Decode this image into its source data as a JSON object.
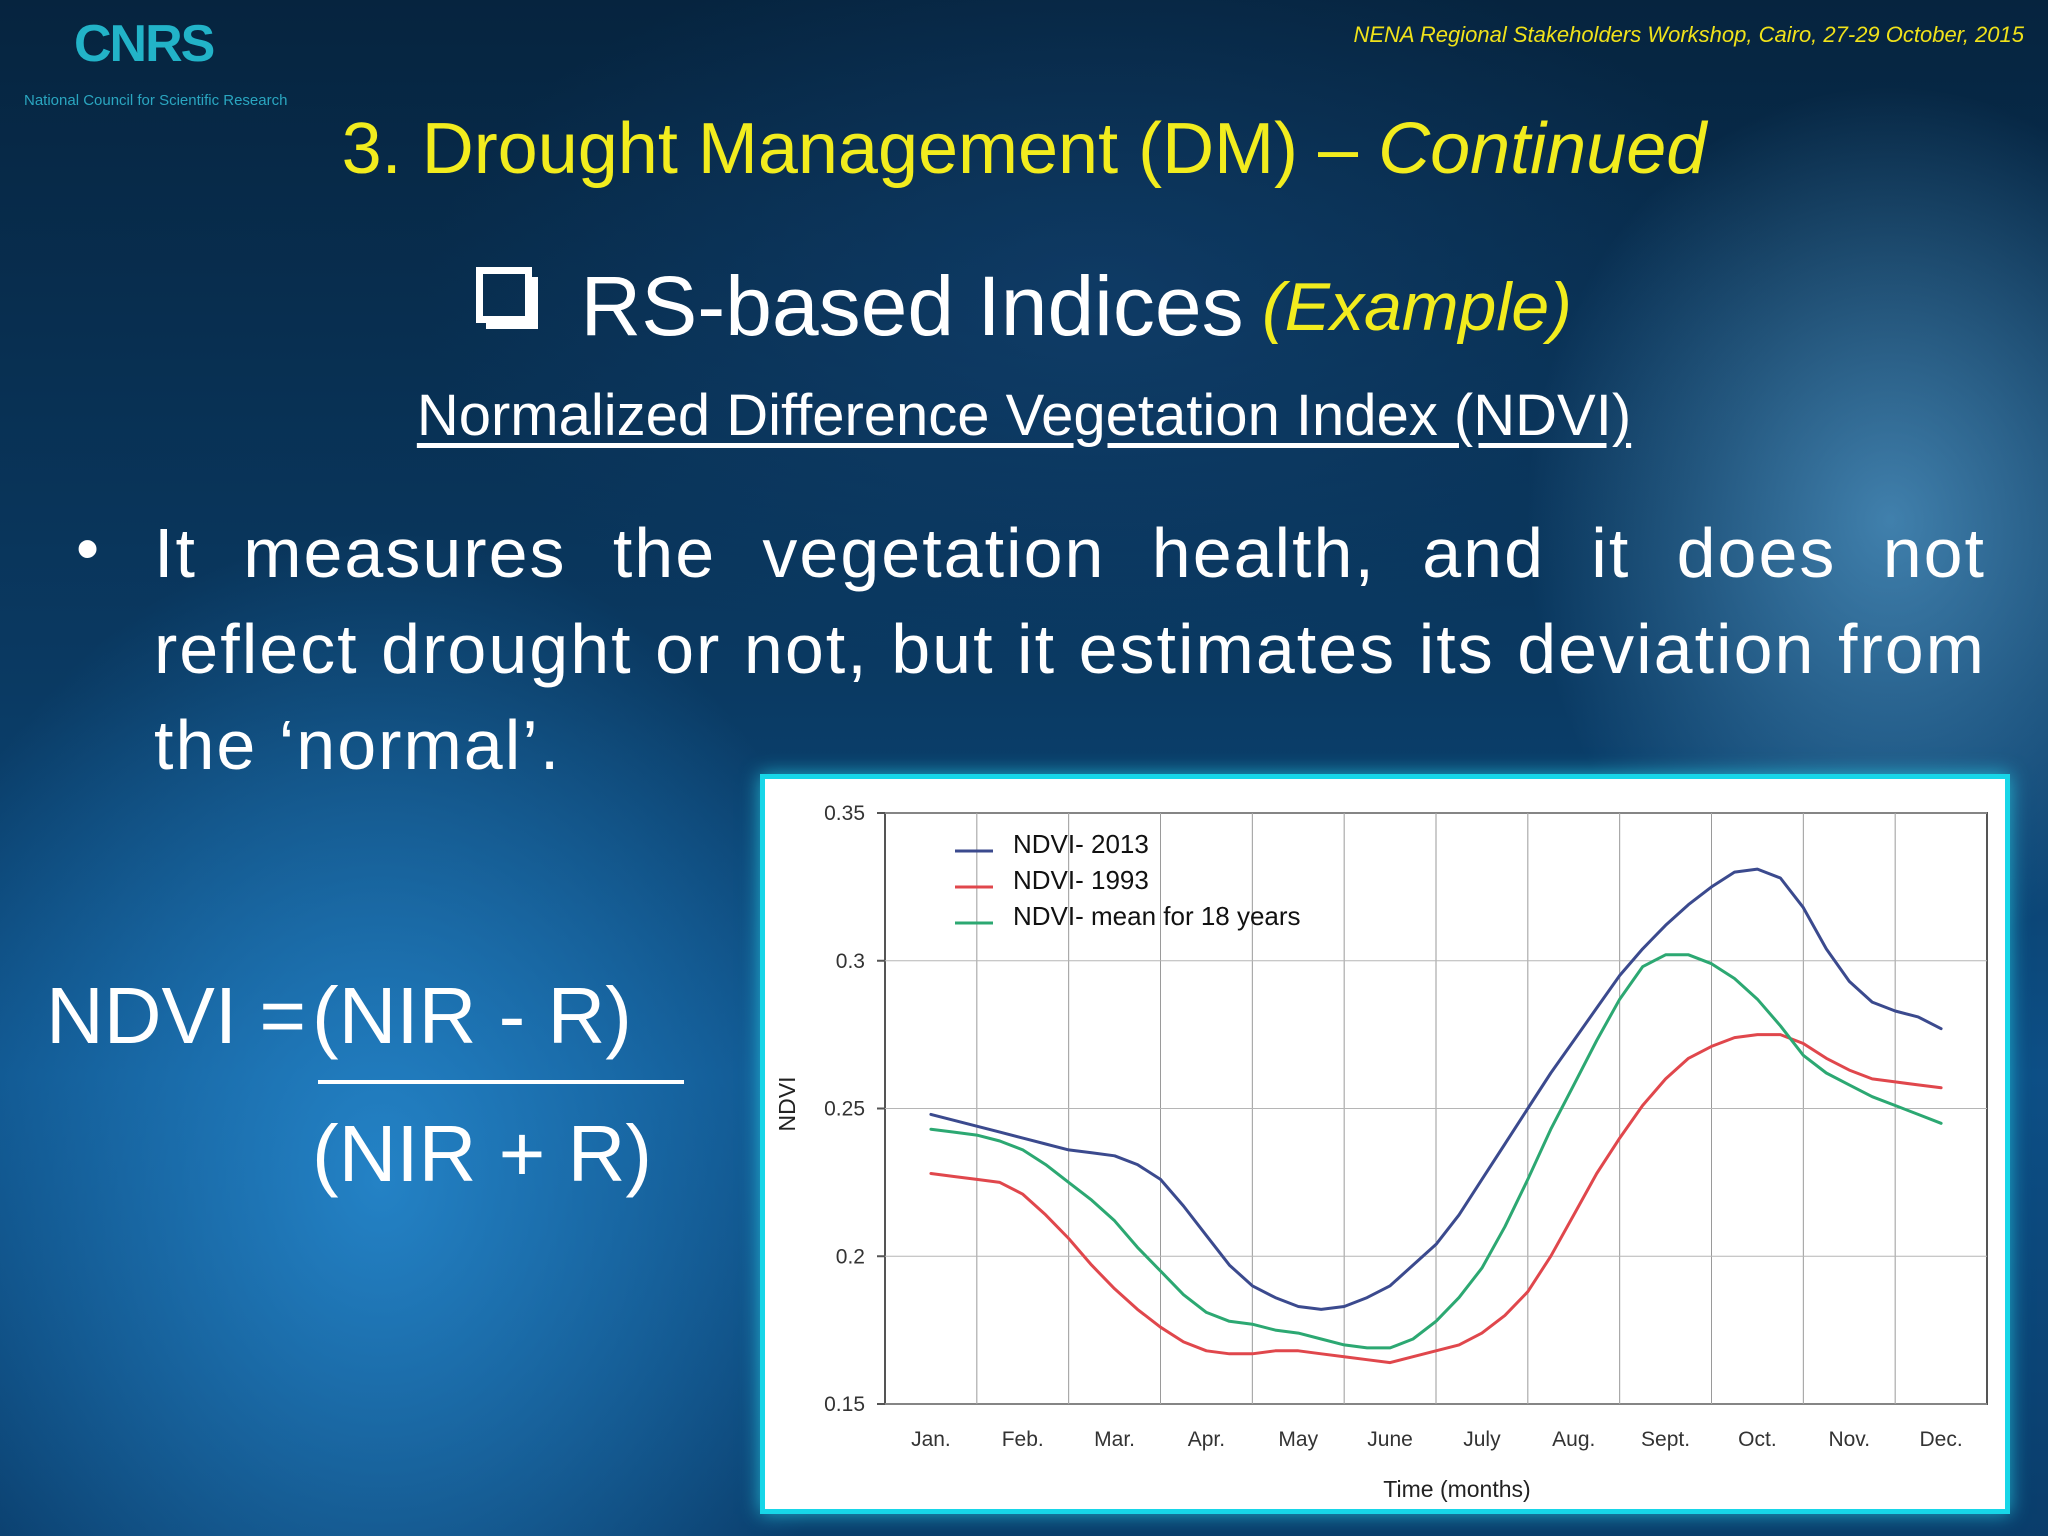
{
  "header": {
    "logo_text": "CNRS",
    "logo_subtitle": "National Council for Scientific Research",
    "workshop": "NENA Regional  Stakeholders Workshop, Cairo, 27-29 October, 2015"
  },
  "title": {
    "main": "3. Drought Management (DM) – ",
    "italic": "Continued"
  },
  "subtitle": {
    "main": "RS-based Indices",
    "example": "(Example)"
  },
  "heading": "Normalized Difference Vegetation Index (NDVI)",
  "bullet": {
    "symbol": "•",
    "text": "It measures the vegetation health, and it does not reflect drought or not, but  it estimates its deviation from the ‘normal’."
  },
  "formula": {
    "left": "NDVI =",
    "numerator": "(NIR - R)",
    "denominator": "(NIR + R)"
  },
  "colors": {
    "title": "#f2ec1e",
    "frame": "#17d6e8",
    "series_2013": "#3b4a8e",
    "series_1993": "#e0474c",
    "series_mean": "#2ca872"
  },
  "chart_data": {
    "type": "line",
    "title": "",
    "xlabel": "Time (months)",
    "ylabel": "NDVI",
    "ylim": [
      0.15,
      0.35
    ],
    "yticks": [
      "0.15",
      "0.2",
      "0.25",
      "0.3",
      "0.35"
    ],
    "grid": true,
    "legend_position": "top-left",
    "categories": [
      "Jan.",
      "Feb.",
      "Mar.",
      "Apr.",
      "May",
      "June",
      "July",
      "Aug.",
      "Sept.",
      "Oct.",
      "Nov.",
      "Dec."
    ],
    "x": [
      1.0,
      1.25,
      1.5,
      1.75,
      2.0,
      2.25,
      2.5,
      2.75,
      3.0,
      3.25,
      3.5,
      3.75,
      4.0,
      4.25,
      4.5,
      4.75,
      5.0,
      5.25,
      5.5,
      5.75,
      6.0,
      6.25,
      6.5,
      6.75,
      7.0,
      7.25,
      7.5,
      7.75,
      8.0,
      8.25,
      8.5,
      8.75,
      9.0,
      9.25,
      9.5,
      9.75,
      10.0,
      10.25,
      10.5,
      10.75,
      11.0,
      11.25,
      11.5,
      11.75,
      12.0
    ],
    "series": [
      {
        "name": "NDVI- 2013",
        "color": "#3b4a8e",
        "values": [
          0.248,
          0.246,
          0.244,
          0.242,
          0.24,
          0.238,
          0.236,
          0.235,
          0.234,
          0.231,
          0.226,
          0.217,
          0.207,
          0.197,
          0.19,
          0.186,
          0.183,
          0.182,
          0.183,
          0.186,
          0.19,
          0.197,
          0.204,
          0.214,
          0.226,
          0.238,
          0.25,
          0.262,
          0.273,
          0.284,
          0.295,
          0.304,
          0.312,
          0.319,
          0.325,
          0.33,
          0.331,
          0.328,
          0.318,
          0.304,
          0.293,
          0.286,
          0.283,
          0.281,
          0.277
        ]
      },
      {
        "name": "NDVI- 1993",
        "color": "#e0474c",
        "values": [
          0.228,
          0.227,
          0.226,
          0.225,
          0.221,
          0.214,
          0.206,
          0.197,
          0.189,
          0.182,
          0.176,
          0.171,
          0.168,
          0.167,
          0.167,
          0.168,
          0.168,
          0.167,
          0.166,
          0.165,
          0.164,
          0.166,
          0.168,
          0.17,
          0.174,
          0.18,
          0.188,
          0.2,
          0.214,
          0.228,
          0.24,
          0.251,
          0.26,
          0.267,
          0.271,
          0.274,
          0.275,
          0.275,
          0.272,
          0.267,
          0.263,
          0.26,
          0.259,
          0.258,
          0.257
        ]
      },
      {
        "name": "NDVI- mean for 18 years",
        "color": "#2ca872",
        "values": [
          0.243,
          0.242,
          0.241,
          0.239,
          0.236,
          0.231,
          0.225,
          0.219,
          0.212,
          0.203,
          0.195,
          0.187,
          0.181,
          0.178,
          0.177,
          0.175,
          0.174,
          0.172,
          0.17,
          0.169,
          0.169,
          0.172,
          0.178,
          0.186,
          0.196,
          0.21,
          0.226,
          0.243,
          0.258,
          0.273,
          0.287,
          0.298,
          0.302,
          0.302,
          0.299,
          0.294,
          0.287,
          0.278,
          0.268,
          0.262,
          0.258,
          0.254,
          0.251,
          0.248,
          0.245
        ]
      }
    ]
  }
}
